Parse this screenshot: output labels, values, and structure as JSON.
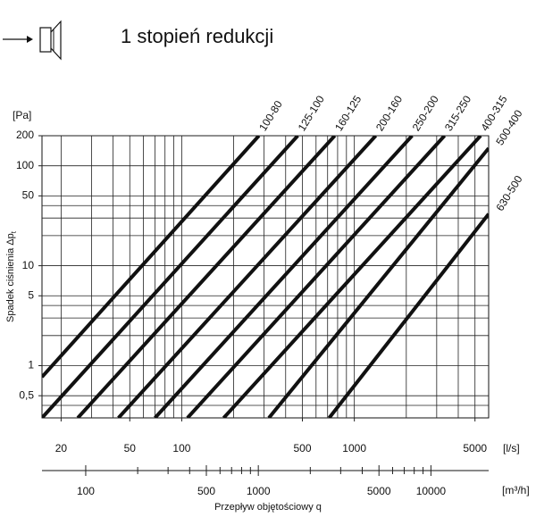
{
  "chart_data": {
    "type": "line",
    "title": "1 stopień redukcji",
    "y_unit": "[Pa]",
    "y_label": "Spadek ciśnienia Δp",
    "y_label_sub": "t",
    "x_unit": "[l/s]",
    "x2_unit": "[m³/h]",
    "x_label": "Przepływ objętościowy q",
    "log_x": true,
    "log_y": true,
    "grid": true,
    "xlim": [
      15.5,
      6000
    ],
    "ylim": [
      0.3,
      200
    ],
    "x2lim": [
      55.8,
      21600
    ],
    "xticks": [
      20,
      50,
      100,
      500,
      1000,
      5000
    ],
    "yticks": [
      200,
      100,
      50,
      10,
      5,
      1,
      {
        "value": 0.5,
        "label": "0,5"
      }
    ],
    "x2ticks": [
      100,
      500,
      1000,
      5000,
      10000
    ],
    "x2minor": [
      200,
      300,
      400,
      600,
      700,
      800,
      900,
      2000,
      3000,
      4000,
      6000,
      7000,
      8000,
      9000
    ],
    "xgrid": [
      20,
      30,
      40,
      50,
      60,
      70,
      80,
      90,
      100,
      200,
      300,
      400,
      500,
      600,
      700,
      800,
      900,
      1000,
      2000,
      3000,
      4000,
      5000
    ],
    "ygrid": [
      0.4,
      0.5,
      1,
      2,
      3,
      4,
      5,
      10,
      20,
      30,
      40,
      50,
      100,
      200
    ],
    "series": [
      {
        "name": "100-80",
        "color": "#111111",
        "x": [
          15.5,
          280
        ],
        "values": [
          0.77,
          200
        ]
      },
      {
        "name": "125-100",
        "color": "#111111",
        "x": [
          15.5,
          470
        ],
        "values": [
          0.3,
          200
        ]
      },
      {
        "name": "160-125",
        "color": "#111111",
        "x": [
          25,
          770
        ],
        "values": [
          0.3,
          200
        ]
      },
      {
        "name": "200-160",
        "color": "#111111",
        "x": [
          43,
          1330
        ],
        "values": [
          0.3,
          200
        ]
      },
      {
        "name": "250-200",
        "color": "#111111",
        "x": [
          70,
          2160
        ],
        "values": [
          0.3,
          200
        ]
      },
      {
        "name": "315-250",
        "color": "#111111",
        "x": [
          108,
          3330
        ],
        "values": [
          0.3,
          200
        ]
      },
      {
        "name": "400-315",
        "color": "#111111",
        "x": [
          175,
          5390
        ],
        "values": [
          0.3,
          200
        ]
      },
      {
        "name": "500-400",
        "color": "#111111",
        "x": [
          320,
          6000
        ],
        "values": [
          0.3,
          150
        ]
      },
      {
        "name": "630-500",
        "color": "#111111",
        "x": [
          715,
          6000
        ],
        "values": [
          0.3,
          33
        ]
      }
    ]
  }
}
